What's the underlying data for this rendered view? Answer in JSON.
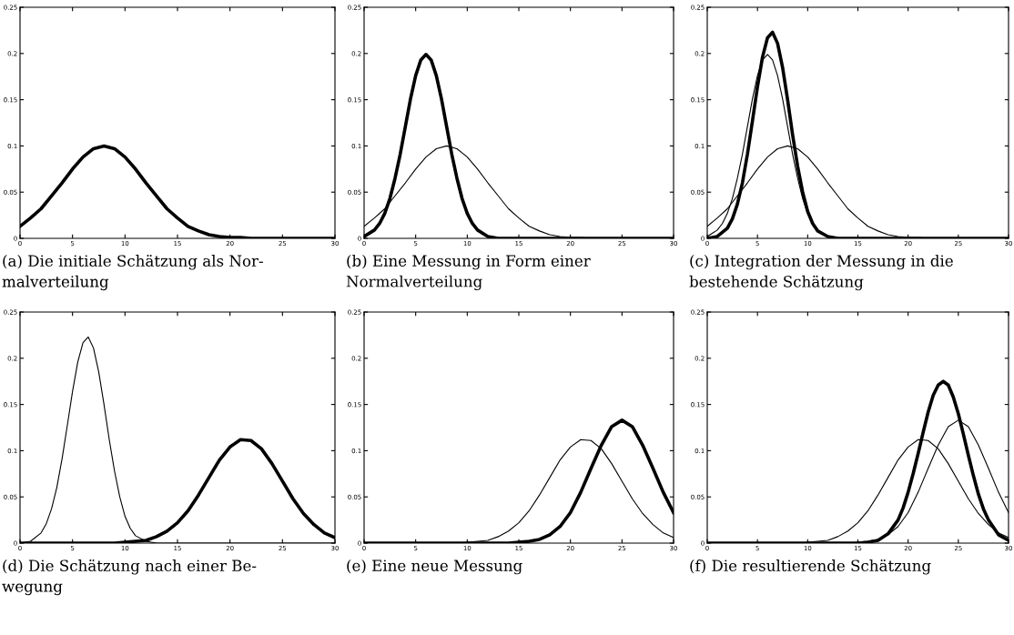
{
  "chart_data": [
    {
      "type": "line",
      "x": [
        0,
        1,
        2,
        3,
        4,
        5,
        6,
        7,
        8,
        9,
        10,
        11,
        12,
        13,
        14,
        15,
        16,
        17,
        18,
        19,
        20,
        21,
        22,
        23,
        24,
        25,
        26,
        27,
        28,
        29,
        30
      ],
      "xlim": [
        0,
        30
      ],
      "ylim": [
        0,
        0.25
      ],
      "xticks": [
        0,
        5,
        10,
        15,
        20,
        25,
        30
      ],
      "yticks": [
        0,
        0.05,
        0.1,
        0.15,
        0.2,
        0.25
      ],
      "grid": false,
      "legend": false,
      "marker": "none",
      "line_style": "solid",
      "annotations": [
        "(a) Die initiale Schätzung als Nor-\nmalverteilung"
      ],
      "series": [
        {
          "color": "#000000",
          "values": [
            0.013,
            0.022,
            0.032,
            0.046,
            0.06,
            0.075,
            0.088,
            0.097,
            0.1,
            0.097,
            0.088,
            0.075,
            0.06,
            0.046,
            0.032,
            0.022,
            0.013,
            0.008,
            0.004,
            0.002,
            0.001,
            0.001,
            0,
            0,
            0,
            0,
            0,
            0,
            0,
            0,
            0
          ]
        }
      ]
    },
    {
      "type": "line",
      "x": [
        0,
        1,
        2,
        3,
        4,
        5,
        6,
        7,
        8,
        9,
        10,
        11,
        12,
        13,
        14,
        15,
        16,
        17,
        18,
        19,
        20,
        21,
        22,
        23,
        24,
        25,
        26,
        27,
        28,
        29,
        30
      ],
      "xlim": [
        0,
        30
      ],
      "ylim": [
        0,
        0.25
      ],
      "xticks": [
        0,
        5,
        10,
        15,
        20,
        25,
        30
      ],
      "yticks": [
        0,
        0.05,
        0.1,
        0.15,
        0.2,
        0.25
      ],
      "grid": false,
      "legend": false,
      "marker": "none",
      "line_style": "solid",
      "annotations": [
        "(b) Eine Messung in Form einer\nNormalverteilung"
      ],
      "series": [
        {
          "color": "#000000",
          "values": [
            0.013,
            0.022,
            0.032,
            0.046,
            0.06,
            0.075,
            0.088,
            0.097,
            0.1,
            0.097,
            0.088,
            0.075,
            0.06,
            0.046,
            0.032,
            0.022,
            0.013,
            0.008,
            0.004,
            0.002,
            0.001,
            0.001,
            0,
            0,
            0,
            0,
            0,
            0,
            0,
            0,
            0
          ]
        },
        {
          "color": "#000000",
          "x": [
            0,
            1,
            1.5,
            2,
            2.5,
            3,
            3.5,
            4,
            4.5,
            5,
            5.5,
            6,
            6.5,
            7,
            7.5,
            8,
            8.5,
            9,
            9.5,
            10,
            10.5,
            11,
            12,
            13,
            14,
            15,
            20,
            25,
            30
          ],
          "values": [
            0.002,
            0.009,
            0.016,
            0.027,
            0.043,
            0.065,
            0.091,
            0.121,
            0.151,
            0.176,
            0.193,
            0.199,
            0.193,
            0.176,
            0.151,
            0.121,
            0.091,
            0.065,
            0.043,
            0.027,
            0.016,
            0.009,
            0.002,
            0,
            0,
            0,
            0,
            0,
            0
          ]
        }
      ]
    },
    {
      "type": "line",
      "x": [
        0,
        1,
        2,
        3,
        4,
        5,
        6,
        7,
        8,
        9,
        10,
        11,
        12,
        13,
        14,
        15,
        16,
        17,
        18,
        19,
        20,
        21,
        22,
        23,
        24,
        25,
        26,
        27,
        28,
        29,
        30
      ],
      "xlim": [
        0,
        30
      ],
      "ylim": [
        0,
        0.25
      ],
      "xticks": [
        0,
        5,
        10,
        15,
        20,
        25,
        30
      ],
      "yticks": [
        0,
        0.05,
        0.1,
        0.15,
        0.2,
        0.25
      ],
      "grid": false,
      "legend": false,
      "marker": "none",
      "line_style": "solid",
      "annotations": [
        "(c) Integration der Messung in die\nbestehende Schätzung"
      ],
      "series": [
        {
          "color": "#000000",
          "values": [
            0.013,
            0.022,
            0.032,
            0.046,
            0.06,
            0.075,
            0.088,
            0.097,
            0.1,
            0.097,
            0.088,
            0.075,
            0.06,
            0.046,
            0.032,
            0.022,
            0.013,
            0.008,
            0.004,
            0.002,
            0.001,
            0.001,
            0,
            0,
            0,
            0,
            0,
            0,
            0,
            0,
            0
          ]
        },
        {
          "color": "#000000",
          "x": [
            0,
            1,
            1.5,
            2,
            2.5,
            3,
            3.5,
            4,
            4.5,
            5,
            5.5,
            6,
            6.5,
            7,
            7.5,
            8,
            8.5,
            9,
            9.5,
            10,
            10.5,
            11,
            12,
            13,
            14,
            15,
            20,
            25,
            30
          ],
          "values": [
            0.002,
            0.009,
            0.016,
            0.027,
            0.043,
            0.065,
            0.091,
            0.121,
            0.151,
            0.176,
            0.193,
            0.199,
            0.193,
            0.176,
            0.151,
            0.121,
            0.091,
            0.065,
            0.043,
            0.027,
            0.016,
            0.009,
            0.002,
            0,
            0,
            0,
            0,
            0,
            0
          ]
        },
        {
          "color": "#000000",
          "x": [
            0,
            1,
            2,
            2.5,
            3,
            3.5,
            4,
            4.5,
            5,
            5.5,
            6,
            6.5,
            7,
            7.5,
            8,
            8.5,
            9,
            9.5,
            10,
            10.5,
            11,
            12,
            13,
            14,
            15,
            20,
            25,
            30
          ],
          "values": [
            0,
            0.002,
            0.011,
            0.021,
            0.037,
            0.06,
            0.091,
            0.127,
            0.164,
            0.196,
            0.217,
            0.223,
            0.211,
            0.185,
            0.15,
            0.112,
            0.078,
            0.05,
            0.029,
            0.016,
            0.008,
            0.002,
            0,
            0,
            0,
            0,
            0,
            0
          ]
        }
      ]
    },
    {
      "type": "line",
      "x": [
        0,
        1,
        2,
        3,
        4,
        5,
        6,
        7,
        8,
        9,
        10,
        11,
        12,
        13,
        14,
        15,
        16,
        17,
        18,
        19,
        20,
        21,
        22,
        23,
        24,
        25,
        26,
        27,
        28,
        29,
        30
      ],
      "xlim": [
        0,
        30
      ],
      "ylim": [
        0,
        0.25
      ],
      "xticks": [
        0,
        5,
        10,
        15,
        20,
        25,
        30
      ],
      "yticks": [
        0,
        0.05,
        0.1,
        0.15,
        0.2,
        0.25
      ],
      "grid": false,
      "legend": false,
      "marker": "none",
      "line_style": "solid",
      "annotations": [
        "(d) Die Schätzung nach einer Be-\nwegung"
      ],
      "series": [
        {
          "color": "#000000",
          "x": [
            0,
            1,
            2,
            2.5,
            3,
            3.5,
            4,
            4.5,
            5,
            5.5,
            6,
            6.5,
            7,
            7.5,
            8,
            8.5,
            9,
            9.5,
            10,
            10.5,
            11,
            12,
            13,
            14,
            15,
            20,
            25,
            30
          ],
          "values": [
            0,
            0.002,
            0.011,
            0.021,
            0.037,
            0.06,
            0.091,
            0.127,
            0.164,
            0.196,
            0.217,
            0.223,
            0.211,
            0.185,
            0.15,
            0.112,
            0.078,
            0.05,
            0.029,
            0.016,
            0.008,
            0.002,
            0,
            0,
            0,
            0,
            0,
            0
          ]
        },
        {
          "color": "#000000",
          "values": [
            0,
            0,
            0,
            0,
            0,
            0,
            0,
            0,
            0,
            0,
            0.001,
            0.002,
            0.003,
            0.007,
            0.013,
            0.022,
            0.035,
            0.052,
            0.071,
            0.09,
            0.104,
            0.112,
            0.111,
            0.102,
            0.086,
            0.067,
            0.048,
            0.032,
            0.02,
            0.011,
            0.006
          ]
        }
      ]
    },
    {
      "type": "line",
      "x": [
        0,
        1,
        2,
        3,
        4,
        5,
        6,
        7,
        8,
        9,
        10,
        11,
        12,
        13,
        14,
        15,
        16,
        17,
        18,
        19,
        20,
        21,
        22,
        23,
        24,
        25,
        26,
        27,
        28,
        29,
        30
      ],
      "xlim": [
        0,
        30
      ],
      "ylim": [
        0,
        0.25
      ],
      "xticks": [
        0,
        5,
        10,
        15,
        20,
        25,
        30
      ],
      "yticks": [
        0,
        0.05,
        0.1,
        0.15,
        0.2,
        0.25
      ],
      "grid": false,
      "legend": false,
      "marker": "none",
      "line_style": "solid",
      "annotations": [
        "(e) Eine neue Messung"
      ],
      "series": [
        {
          "color": "#000000",
          "values": [
            0,
            0,
            0,
            0,
            0,
            0,
            0,
            0,
            0,
            0,
            0.001,
            0.002,
            0.003,
            0.007,
            0.013,
            0.022,
            0.035,
            0.052,
            0.071,
            0.09,
            0.104,
            0.112,
            0.111,
            0.102,
            0.086,
            0.067,
            0.048,
            0.032,
            0.02,
            0.011,
            0.006
          ]
        },
        {
          "color": "#000000",
          "values": [
            0,
            0,
            0,
            0,
            0,
            0,
            0,
            0,
            0,
            0,
            0,
            0,
            0,
            0,
            0,
            0.001,
            0.002,
            0.004,
            0.009,
            0.018,
            0.033,
            0.055,
            0.081,
            0.106,
            0.126,
            0.133,
            0.126,
            0.106,
            0.081,
            0.055,
            0.033
          ]
        }
      ]
    },
    {
      "type": "line",
      "x": [
        0,
        1,
        2,
        3,
        4,
        5,
        6,
        7,
        8,
        9,
        10,
        11,
        12,
        13,
        14,
        15,
        16,
        17,
        18,
        19,
        20,
        21,
        22,
        23,
        24,
        25,
        26,
        27,
        28,
        29,
        30
      ],
      "xlim": [
        0,
        30
      ],
      "ylim": [
        0,
        0.25
      ],
      "xticks": [
        0,
        5,
        10,
        15,
        20,
        25,
        30
      ],
      "yticks": [
        0,
        0.05,
        0.1,
        0.15,
        0.2,
        0.25
      ],
      "grid": false,
      "legend": false,
      "marker": "none",
      "line_style": "solid",
      "annotations": [
        "(f) Die resultierende Schätzung"
      ],
      "series": [
        {
          "color": "#000000",
          "values": [
            0,
            0,
            0,
            0,
            0,
            0,
            0,
            0,
            0,
            0,
            0.001,
            0.002,
            0.003,
            0.007,
            0.013,
            0.022,
            0.035,
            0.052,
            0.071,
            0.09,
            0.104,
            0.112,
            0.111,
            0.102,
            0.086,
            0.067,
            0.048,
            0.032,
            0.02,
            0.011,
            0.006
          ]
        },
        {
          "color": "#000000",
          "values": [
            0,
            0,
            0,
            0,
            0,
            0,
            0,
            0,
            0,
            0,
            0,
            0,
            0,
            0,
            0,
            0.001,
            0.002,
            0.004,
            0.009,
            0.018,
            0.033,
            0.055,
            0.081,
            0.106,
            0.126,
            0.133,
            0.126,
            0.106,
            0.081,
            0.055,
            0.033
          ]
        },
        {
          "color": "#000000",
          "x": [
            0,
            5,
            10,
            15,
            16,
            17,
            18,
            19,
            19.5,
            20,
            20.5,
            21,
            21.5,
            22,
            22.5,
            23,
            23.5,
            24,
            24.5,
            25,
            25.5,
            26,
            26.5,
            27,
            27.5,
            28,
            29,
            30
          ],
          "values": [
            0,
            0,
            0,
            0,
            0.001,
            0.003,
            0.01,
            0.025,
            0.038,
            0.055,
            0.075,
            0.097,
            0.12,
            0.142,
            0.16,
            0.171,
            0.175,
            0.171,
            0.158,
            0.14,
            0.118,
            0.095,
            0.073,
            0.053,
            0.037,
            0.025,
            0.009,
            0.003
          ]
        }
      ]
    }
  ]
}
